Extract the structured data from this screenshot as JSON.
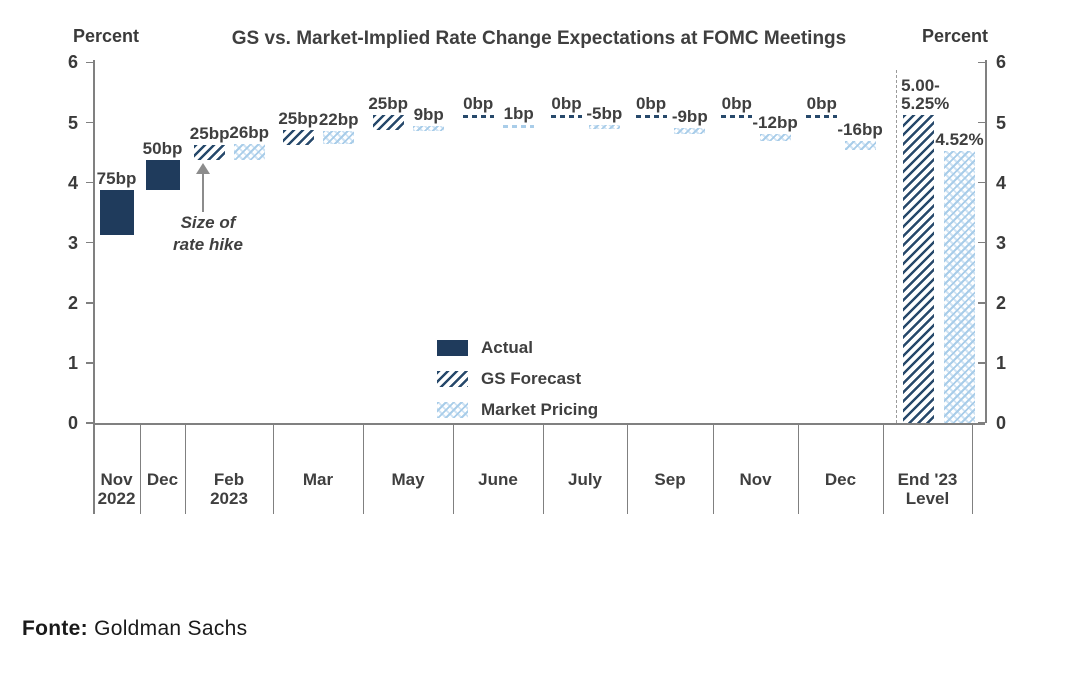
{
  "chart_data": {
    "type": "bar",
    "title": "GS vs. Market-Implied Rate Change Expectations at FOMC Meetings",
    "ylabel_left": "Percent",
    "ylabel_right": "Percent",
    "ylim": [
      0,
      6
    ],
    "yticks": [
      0,
      1,
      2,
      3,
      4,
      5,
      6
    ],
    "grid": false,
    "legend_position": "center-bottom",
    "colors": {
      "actual": "#1F3B5C",
      "gs_hatch": "#27496B",
      "market_hatch": "#A9CDE9",
      "market_hatch2": "#CFE3F4",
      "axis": "#808080",
      "text": "#3F3F3F",
      "arrow": "#8C8C8C"
    },
    "legend": [
      {
        "label": "Actual",
        "series": "actual"
      },
      {
        "label": "GS Forecast",
        "series": "gs"
      },
      {
        "label": "Market Pricing",
        "series": "market"
      }
    ],
    "annotation": {
      "text_lines": [
        "Size of",
        "rate hike"
      ]
    },
    "groups": [
      {
        "category_lines": [
          "Nov",
          "2022"
        ],
        "bars": [
          {
            "series": "actual",
            "label": "75bp",
            "from": 3.125,
            "to": 3.875
          }
        ]
      },
      {
        "category_lines": [
          "Dec"
        ],
        "bars": [
          {
            "series": "actual",
            "label": "50bp",
            "from": 3.875,
            "to": 4.375
          }
        ]
      },
      {
        "category_lines": [
          "Feb",
          "2023"
        ],
        "bars": [
          {
            "series": "gs",
            "label": "25bp",
            "from": 4.375,
            "to": 4.625
          },
          {
            "series": "market",
            "label": "26bp",
            "from": 4.375,
            "to": 4.635
          }
        ]
      },
      {
        "category_lines": [
          "Mar"
        ],
        "bars": [
          {
            "series": "gs",
            "label": "25bp",
            "from": 4.625,
            "to": 4.875
          },
          {
            "series": "market",
            "label": "22bp",
            "from": 4.635,
            "to": 4.855
          }
        ]
      },
      {
        "category_lines": [
          "May"
        ],
        "bars": [
          {
            "series": "gs",
            "label": "25bp",
            "from": 4.875,
            "to": 5.125
          },
          {
            "series": "market",
            "label": "9bp",
            "from": 4.855,
            "to": 4.945
          }
        ]
      },
      {
        "category_lines": [
          "June"
        ],
        "bars": [
          {
            "series": "gs",
            "label": "0bp",
            "from": 5.125,
            "to": 5.125
          },
          {
            "series": "market",
            "label": "1bp",
            "from": 4.945,
            "to": 4.955
          }
        ]
      },
      {
        "category_lines": [
          "July"
        ],
        "bars": [
          {
            "series": "gs",
            "label": "0bp",
            "from": 5.125,
            "to": 5.125
          },
          {
            "series": "market",
            "label": "-5bp",
            "from": 4.955,
            "to": 4.905
          }
        ]
      },
      {
        "category_lines": [
          "Sep"
        ],
        "bars": [
          {
            "series": "gs",
            "label": "0bp",
            "from": 5.125,
            "to": 5.125
          },
          {
            "series": "market",
            "label": "-9bp",
            "from": 4.905,
            "to": 4.815
          }
        ]
      },
      {
        "category_lines": [
          "Nov"
        ],
        "bars": [
          {
            "series": "gs",
            "label": "0bp",
            "from": 5.125,
            "to": 5.125
          },
          {
            "series": "market",
            "label": "-12bp",
            "from": 4.815,
            "to": 4.695
          }
        ]
      },
      {
        "category_lines": [
          "Dec"
        ],
        "bars": [
          {
            "series": "gs",
            "label": "0bp",
            "from": 5.125,
            "to": 5.125
          },
          {
            "series": "market",
            "label": "-16bp",
            "from": 4.695,
            "to": 4.535
          }
        ]
      },
      {
        "category_lines": [
          "End '23",
          "Level"
        ],
        "separator": "dashed",
        "bars": [
          {
            "series": "gs",
            "label_lines": [
              "5.00-",
              "5.25%"
            ],
            "from": 0,
            "to": 5.125
          },
          {
            "series": "market",
            "label": "4.52%",
            "from": 0,
            "to": 4.52
          }
        ]
      }
    ]
  },
  "source": {
    "prefix": "Fonte:",
    "text": "Goldman Sachs"
  }
}
